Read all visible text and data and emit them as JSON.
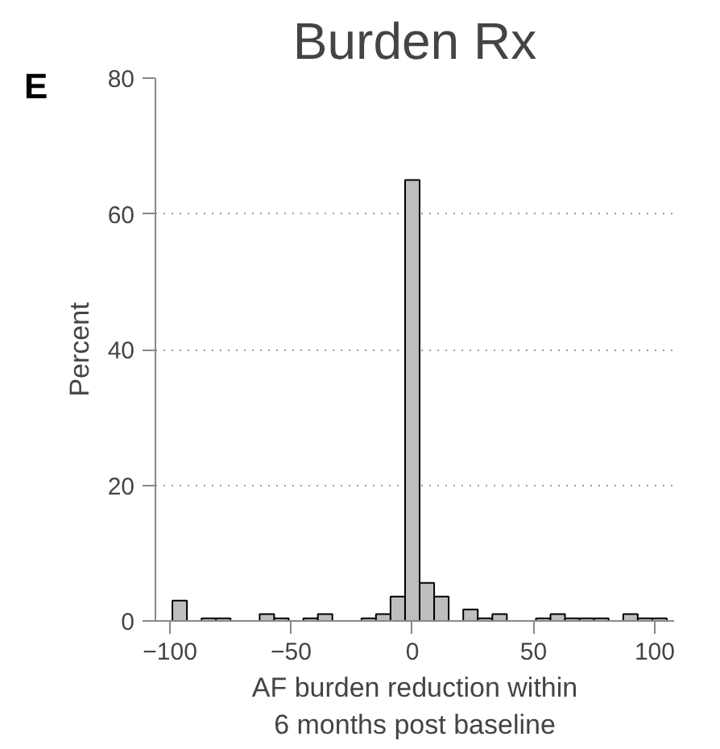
{
  "chart_data": {
    "type": "histogram",
    "title": "Burden Rx",
    "xlabel": "AF burden reduction within\n6 months post baseline",
    "ylabel": "Percent",
    "annotations": [
      "E"
    ],
    "bins": [
      -99,
      -93,
      -87,
      -81,
      -75,
      -69,
      -63,
      -57,
      -51,
      -45,
      -39,
      -33,
      -27,
      -21,
      -15,
      -9,
      -3,
      3,
      9,
      15,
      21,
      27,
      33,
      39,
      45,
      51,
      57,
      63,
      69,
      75,
      81,
      87,
      93,
      99,
      105
    ],
    "values": [
      3.0,
      0,
      0.4,
      0.4,
      0,
      0,
      1.0,
      0.4,
      0,
      0.4,
      1.0,
      0,
      0,
      0.4,
      1.0,
      3.6,
      65,
      5.6,
      3.6,
      0,
      1.7,
      0.4,
      1.0,
      0,
      0,
      0.4,
      1.0,
      0.4,
      0.4,
      0.4,
      0,
      1.0,
      0.4,
      0.4
    ],
    "color": "#bebebe",
    "xlim": [
      -106,
      108
    ],
    "xticks": [
      -100,
      -50,
      0,
      50,
      100
    ],
    "ylim": [
      0,
      80
    ],
    "yticks": [
      0,
      20,
      40,
      60,
      80
    ],
    "grid": "y"
  }
}
